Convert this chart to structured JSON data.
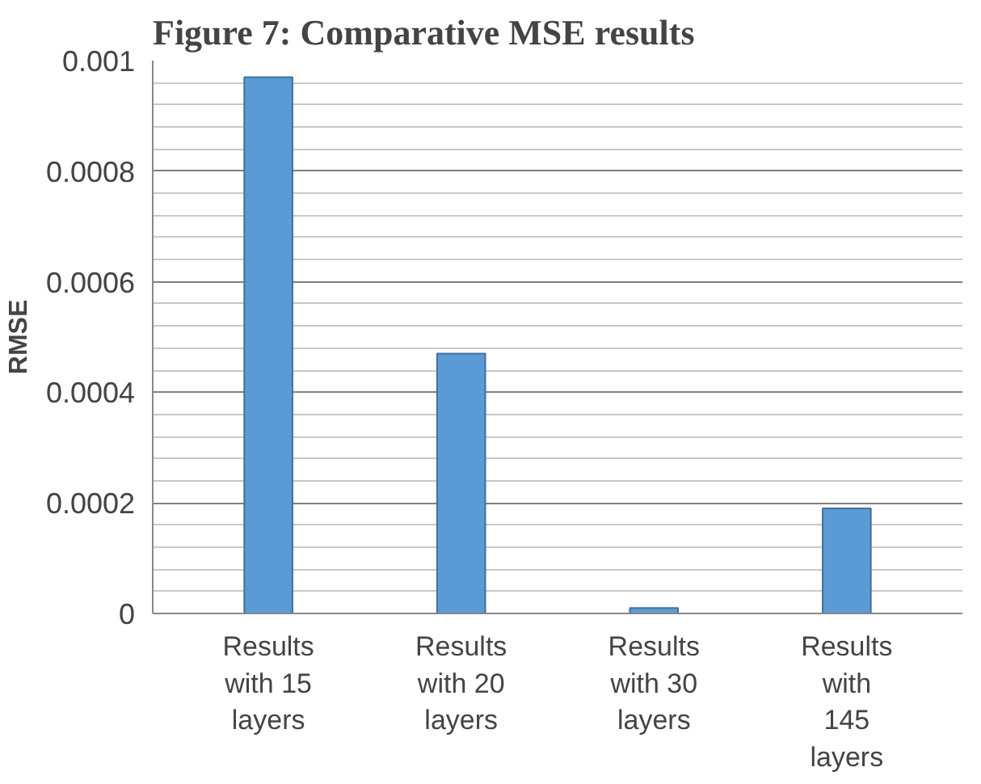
{
  "chart_data": {
    "type": "bar",
    "title": "Figure 7: Comparative MSE results",
    "ylabel": "RMSE",
    "categories": [
      "Results with 15 layers",
      "Results with 20 layers",
      "Results with 30 layers",
      "Results with 145 layers"
    ],
    "values": [
      0.00097,
      0.00047,
      1e-05,
      0.00019
    ],
    "color": "#5b9bd5",
    "ylim": [
      0,
      0.001
    ],
    "yticks": [
      0,
      0.0002,
      0.0004,
      0.0006,
      0.0008,
      0.001
    ],
    "grid": "y"
  }
}
